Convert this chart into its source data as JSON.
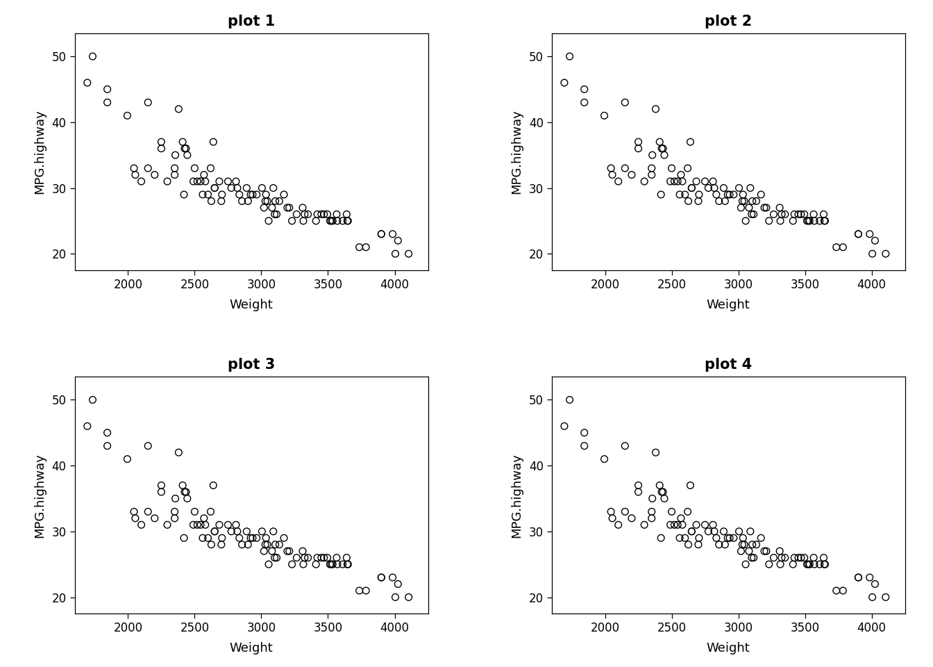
{
  "weight": [
    1695,
    1735,
    1845,
    1845,
    1995,
    2045,
    2055,
    2100,
    2150,
    2150,
    2200,
    2250,
    2250,
    2295,
    2350,
    2350,
    2355,
    2380,
    2410,
    2420,
    2425,
    2435,
    2445,
    2490,
    2500,
    2520,
    2545,
    2560,
    2570,
    2580,
    2600,
    2620,
    2625,
    2640,
    2650,
    2650,
    2685,
    2700,
    2705,
    2750,
    2775,
    2810,
    2820,
    2835,
    2855,
    2890,
    2900,
    2920,
    2935,
    2965,
    3005,
    3020,
    3030,
    3035,
    3045,
    3055,
    3080,
    3090,
    3100,
    3105,
    3115,
    3135,
    3170,
    3195,
    3210,
    3230,
    3265,
    3310,
    3315,
    3325,
    3350,
    3410,
    3420,
    3450,
    3470,
    3495,
    3515,
    3525,
    3535,
    3565,
    3570,
    3610,
    3640,
    3645,
    3650,
    3735,
    3785,
    3900,
    3900,
    3985,
    4005,
    4025,
    4105
  ],
  "mpg_highway": [
    46,
    50,
    45,
    43,
    41,
    33,
    32,
    31,
    33,
    43,
    32,
    37,
    36,
    31,
    32,
    33,
    35,
    42,
    37,
    29,
    36,
    36,
    35,
    31,
    33,
    31,
    31,
    29,
    32,
    31,
    29,
    33,
    28,
    37,
    30,
    30,
    31,
    28,
    29,
    31,
    30,
    31,
    30,
    29,
    28,
    30,
    28,
    29,
    29,
    29,
    30,
    27,
    28,
    29,
    28,
    25,
    27,
    30,
    26,
    28,
    26,
    28,
    29,
    27,
    27,
    25,
    26,
    27,
    25,
    26,
    26,
    25,
    26,
    26,
    26,
    26,
    25,
    25,
    25,
    26,
    25,
    25,
    26,
    25,
    25,
    21,
    21,
    23,
    23,
    23,
    20,
    22,
    20
  ],
  "titles": [
    "plot 1",
    "plot 2",
    "plot 3",
    "plot 4"
  ],
  "xlabel": "Weight",
  "ylabel": "MPG.highway",
  "xlim": [
    1600,
    4250
  ],
  "ylim": [
    17.5,
    53.5
  ],
  "xticks": [
    2000,
    2500,
    3000,
    3500,
    4000
  ],
  "yticks": [
    20,
    30,
    40,
    50
  ],
  "background_color": "#ffffff",
  "marker_color": "#000000",
  "marker_size": 7,
  "marker_linewidth": 1.0,
  "title_fontsize": 15,
  "label_fontsize": 13,
  "tick_fontsize": 12
}
